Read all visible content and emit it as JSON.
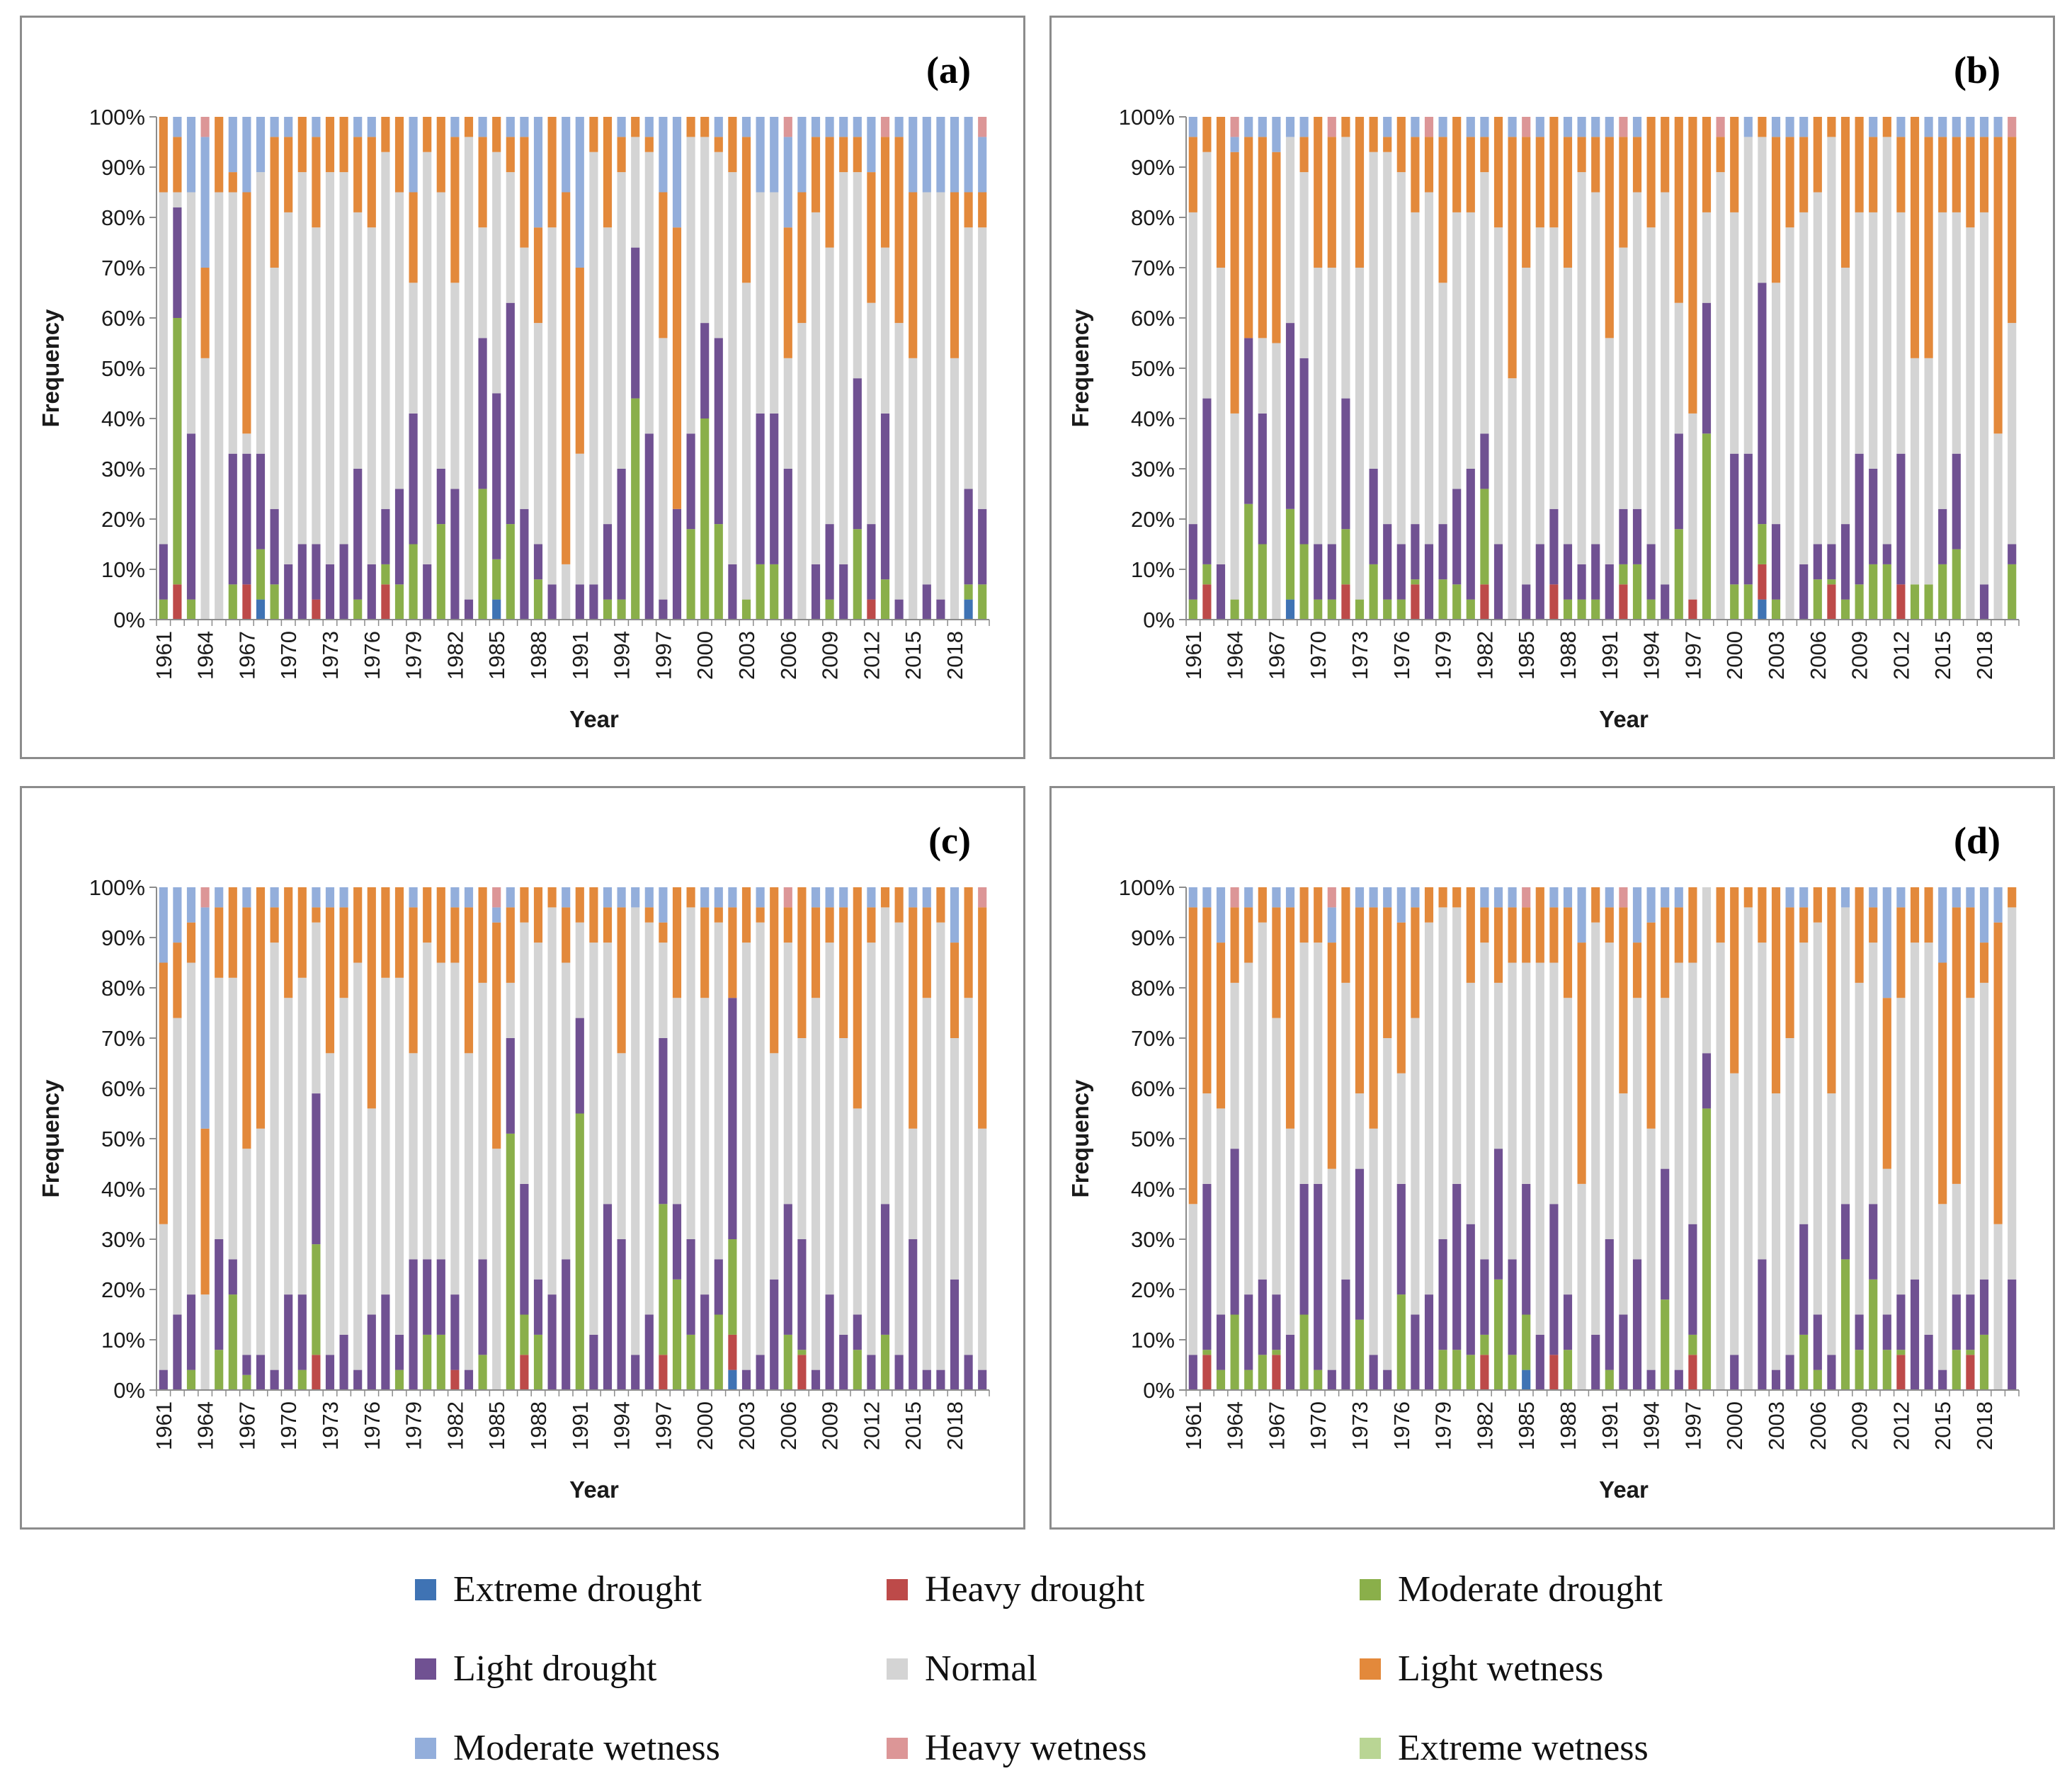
{
  "chart_data": {
    "type": "bar",
    "stacked": true,
    "normalized": "percent",
    "years": [
      "1961",
      "1962",
      "1963",
      "1964",
      "1965",
      "1966",
      "1967",
      "1968",
      "1969",
      "1970",
      "1971",
      "1972",
      "1973",
      "1974",
      "1975",
      "1976",
      "1977",
      "1978",
      "1979",
      "1980",
      "1981",
      "1982",
      "1983",
      "1984",
      "1985",
      "1986",
      "1987",
      "1988",
      "1989",
      "1990",
      "1991",
      "1992",
      "1993",
      "1994",
      "1995",
      "1996",
      "1997",
      "1998",
      "1999",
      "2000",
      "2001",
      "2002",
      "2003",
      "2004",
      "2005",
      "2006",
      "2007",
      "2008",
      "2009",
      "2010",
      "2011",
      "2012",
      "2013",
      "2014",
      "2015",
      "2016",
      "2017",
      "2018",
      "2019",
      "2020"
    ],
    "tick_labels": [
      "1961",
      "1964",
      "1967",
      "1970",
      "1973",
      "1976",
      "1979",
      "1982",
      "1985",
      "1988",
      "1991",
      "1994",
      "1997",
      "2000",
      "2003",
      "2006",
      "2009",
      "2012",
      "2015",
      "2018"
    ],
    "categories": [
      "Extreme drought",
      "Heavy drought",
      "Moderate drought",
      "Light drought",
      "Normal",
      "Light wetness",
      "Moderate wetness",
      "Heavy wetness",
      "Extreme wetness"
    ],
    "colors": [
      "#3f73b4",
      "#bd4a49",
      "#8aaf4a",
      "#705192",
      "#d4d4d4",
      "#e3893b",
      "#93aedb",
      "#dc9697",
      "#b9d594"
    ],
    "yticks": [
      "0%",
      "10%",
      "20%",
      "30%",
      "40%",
      "50%",
      "60%",
      "70%",
      "80%",
      "90%",
      "100%"
    ],
    "ylabel": "Frequency",
    "xlabel": "Year",
    "ylim": [
      0,
      100
    ],
    "panels": [
      {
        "label": "(a)",
        "drought_totals": [
          15,
          82,
          37,
          0,
          0,
          33,
          33,
          33,
          22,
          11,
          15,
          15,
          11,
          15,
          30,
          11,
          22,
          26,
          41,
          11,
          30,
          26,
          4,
          56,
          45,
          63,
          22,
          15,
          7,
          0,
          7,
          7,
          19,
          30,
          74,
          37,
          4,
          22,
          37,
          59,
          56,
          11,
          4,
          41,
          41,
          30,
          0,
          11,
          19,
          11,
          48,
          19,
          41,
          4,
          0,
          7,
          4,
          0,
          26,
          22
        ],
        "light_drought_shares": [
          11,
          22,
          33,
          0,
          0,
          26,
          26,
          19,
          15,
          11,
          15,
          11,
          11,
          15,
          26,
          11,
          11,
          19,
          26,
          11,
          11,
          26,
          4,
          30,
          33,
          44,
          22,
          7,
          7,
          0,
          7,
          7,
          15,
          26,
          30,
          37,
          4,
          22,
          19,
          19,
          37,
          11,
          0,
          30,
          30,
          30,
          0,
          11,
          15,
          11,
          30,
          15,
          33,
          4,
          0,
          7,
          4,
          0,
          19,
          15
        ],
        "wet_start": [
          85,
          85,
          85,
          52,
          85,
          85,
          37,
          89,
          70,
          81,
          89,
          78,
          89,
          89,
          81,
          78,
          93,
          85,
          67,
          93,
          85,
          67,
          96,
          78,
          93,
          89,
          74,
          59,
          78,
          11,
          33,
          93,
          78,
          89,
          96,
          93,
          56,
          22,
          96,
          96,
          93,
          89,
          67,
          85,
          85,
          52,
          59,
          81,
          74,
          89,
          89,
          63,
          74,
          59,
          52,
          85,
          85,
          52,
          78,
          78
        ],
        "moderate_wet_top": [
          100,
          96,
          85,
          70,
          100,
          89,
          85,
          89,
          96,
          96,
          100,
          96,
          100,
          100,
          96,
          96,
          100,
          100,
          85,
          100,
          100,
          96,
          100,
          96,
          100,
          96,
          96,
          78,
          100,
          85,
          70,
          100,
          100,
          96,
          100,
          96,
          85,
          78,
          100,
          100,
          96,
          100,
          96,
          85,
          85,
          78,
          85,
          96,
          96,
          96,
          96,
          89,
          96,
          96,
          85,
          85,
          85,
          85,
          85,
          85
        ]
      },
      {
        "label": "(b)",
        "drought_totals": [
          19,
          44,
          11,
          4,
          56,
          41,
          0,
          59,
          52,
          15,
          15,
          44,
          4,
          30,
          19,
          15,
          19,
          15,
          19,
          26,
          30,
          37,
          15,
          0,
          7,
          15,
          22,
          15,
          11,
          15,
          11,
          22,
          22,
          15,
          7,
          37,
          4,
          63,
          0,
          33,
          33,
          67,
          19,
          0,
          11,
          15,
          15,
          19,
          33,
          30,
          15,
          33,
          7,
          7,
          22,
          33,
          0,
          7,
          0,
          15
        ],
        "light_drought_shares": [
          15,
          33,
          11,
          0,
          33,
          26,
          0,
          37,
          37,
          11,
          11,
          26,
          0,
          19,
          15,
          11,
          11,
          15,
          11,
          19,
          26,
          11,
          15,
          0,
          7,
          15,
          15,
          11,
          7,
          11,
          11,
          11,
          11,
          11,
          7,
          19,
          0,
          26,
          0,
          26,
          26,
          48,
          15,
          0,
          11,
          7,
          7,
          15,
          26,
          19,
          4,
          26,
          0,
          0,
          11,
          19,
          0,
          7,
          0,
          4
        ],
        "wet_start": [
          81,
          93,
          70,
          41,
          56,
          56,
          55,
          96,
          89,
          70,
          70,
          96,
          70,
          93,
          93,
          89,
          81,
          85,
          67,
          81,
          81,
          89,
          78,
          48,
          70,
          78,
          78,
          70,
          89,
          85,
          56,
          74,
          85,
          78,
          85,
          63,
          41,
          81,
          89,
          81,
          96,
          96,
          67,
          78,
          81,
          85,
          96,
          70,
          81,
          81,
          96,
          81,
          52,
          52,
          81,
          81,
          78,
          81,
          37,
          59
        ],
        "moderate_wet_top": [
          96,
          100,
          100,
          93,
          96,
          96,
          93,
          96,
          96,
          100,
          96,
          100,
          100,
          100,
          96,
          100,
          96,
          96,
          96,
          100,
          96,
          96,
          100,
          96,
          96,
          96,
          100,
          96,
          96,
          96,
          96,
          96,
          96,
          100,
          100,
          100,
          100,
          100,
          96,
          100,
          96,
          100,
          96,
          96,
          96,
          100,
          100,
          100,
          100,
          96,
          100,
          96,
          100,
          96,
          96,
          96,
          96,
          96,
          96,
          96
        ]
      },
      {
        "label": "(c)",
        "drought_totals": [
          4,
          15,
          19,
          0,
          30,
          26,
          7,
          7,
          4,
          19,
          19,
          59,
          7,
          11,
          4,
          15,
          19,
          11,
          26,
          26,
          26,
          19,
          4,
          26,
          0,
          70,
          41,
          22,
          19,
          26,
          74,
          11,
          37,
          30,
          7,
          15,
          70,
          37,
          30,
          19,
          26,
          78,
          4,
          7,
          22,
          37,
          30,
          4,
          19,
          11,
          15,
          7,
          37,
          7,
          30,
          4,
          4,
          22,
          7,
          4
        ],
        "light_drought_shares": [
          4,
          15,
          15,
          0,
          22,
          7,
          4,
          7,
          4,
          19,
          15,
          30,
          7,
          11,
          4,
          15,
          19,
          7,
          26,
          15,
          15,
          15,
          4,
          19,
          0,
          19,
          26,
          11,
          19,
          26,
          19,
          11,
          37,
          30,
          7,
          15,
          33,
          15,
          19,
          19,
          11,
          48,
          4,
          7,
          22,
          26,
          22,
          4,
          19,
          11,
          7,
          7,
          26,
          7,
          30,
          4,
          4,
          22,
          7,
          4
        ],
        "wet_start": [
          33,
          74,
          85,
          19,
          82,
          82,
          48,
          52,
          89,
          78,
          82,
          93,
          67,
          78,
          85,
          56,
          82,
          82,
          67,
          89,
          85,
          85,
          67,
          81,
          48,
          81,
          93,
          89,
          96,
          85,
          93,
          89,
          89,
          67,
          96,
          93,
          89,
          78,
          96,
          78,
          93,
          67,
          89,
          93,
          67,
          89,
          70,
          78,
          89,
          70,
          56,
          89,
          96,
          93,
          52,
          78,
          93,
          70,
          78,
          52
        ],
        "moderate_wet_top": [
          85,
          89,
          93,
          52,
          96,
          100,
          96,
          100,
          96,
          100,
          100,
          96,
          96,
          96,
          100,
          100,
          100,
          100,
          96,
          100,
          100,
          96,
          96,
          100,
          93,
          96,
          100,
          100,
          100,
          96,
          100,
          100,
          96,
          96,
          96,
          96,
          93,
          100,
          100,
          96,
          96,
          96,
          100,
          96,
          100,
          96,
          100,
          96,
          96,
          96,
          100,
          96,
          100,
          100,
          96,
          96,
          100,
          89,
          100,
          96
        ]
      },
      {
        "label": "(d)",
        "drought_totals": [
          7,
          41,
          15,
          48,
          19,
          22,
          19,
          11,
          41,
          41,
          4,
          22,
          44,
          7,
          4,
          41,
          15,
          19,
          30,
          41,
          33,
          26,
          48,
          26,
          41,
          11,
          37,
          19,
          0,
          11,
          30,
          15,
          26,
          4,
          44,
          4,
          33,
          67,
          0,
          7,
          0,
          26,
          4,
          7,
          33,
          15,
          7,
          37,
          15,
          37,
          15,
          19,
          22,
          11,
          4,
          19,
          19,
          22,
          0,
          22
        ],
        "light_drought_shares": [
          7,
          33,
          11,
          33,
          15,
          15,
          11,
          11,
          26,
          37,
          4,
          22,
          30,
          7,
          4,
          22,
          15,
          19,
          22,
          33,
          26,
          15,
          26,
          19,
          26,
          11,
          30,
          11,
          0,
          11,
          26,
          15,
          26,
          4,
          26,
          4,
          22,
          11,
          0,
          7,
          0,
          26,
          4,
          7,
          22,
          11,
          7,
          11,
          7,
          15,
          7,
          11,
          22,
          11,
          4,
          11,
          11,
          11,
          0,
          22
        ],
        "wet_start": [
          37,
          59,
          56,
          81,
          85,
          93,
          74,
          52,
          89,
          89,
          44,
          81,
          59,
          52,
          70,
          63,
          74,
          93,
          96,
          96,
          81,
          89,
          81,
          85,
          85,
          85,
          85,
          78,
          41,
          93,
          89,
          59,
          78,
          52,
          78,
          85,
          85,
          100,
          89,
          63,
          96,
          89,
          59,
          70,
          89,
          93,
          59,
          96,
          81,
          89,
          44,
          78,
          89,
          89,
          37,
          41,
          78,
          81,
          33,
          96
        ],
        "moderate_wet_top": [
          96,
          96,
          89,
          96,
          96,
          100,
          96,
          96,
          100,
          100,
          89,
          100,
          96,
          96,
          96,
          93,
          96,
          100,
          100,
          100,
          100,
          96,
          96,
          96,
          96,
          100,
          96,
          96,
          89,
          100,
          96,
          96,
          89,
          93,
          96,
          96,
          100,
          100,
          100,
          100,
          100,
          100,
          100,
          96,
          96,
          100,
          100,
          96,
          100,
          96,
          78,
          96,
          100,
          100,
          85,
          96,
          96,
          89,
          93,
          100
        ]
      }
    ]
  },
  "legend": {
    "items": [
      {
        "label": "Extreme drought",
        "color": "#3f73b4"
      },
      {
        "label": "Heavy drought",
        "color": "#bd4a49"
      },
      {
        "label": "Moderate drought",
        "color": "#8aaf4a"
      },
      {
        "label": "Light drought",
        "color": "#705192"
      },
      {
        "label": "Normal",
        "color": "#d4d4d4"
      },
      {
        "label": "Light wetness",
        "color": "#e3893b"
      },
      {
        "label": "Moderate wetness",
        "color": "#93aedb"
      },
      {
        "label": "Heavy wetness",
        "color": "#dc9697"
      },
      {
        "label": "Extreme wetness",
        "color": "#b9d594"
      }
    ]
  }
}
